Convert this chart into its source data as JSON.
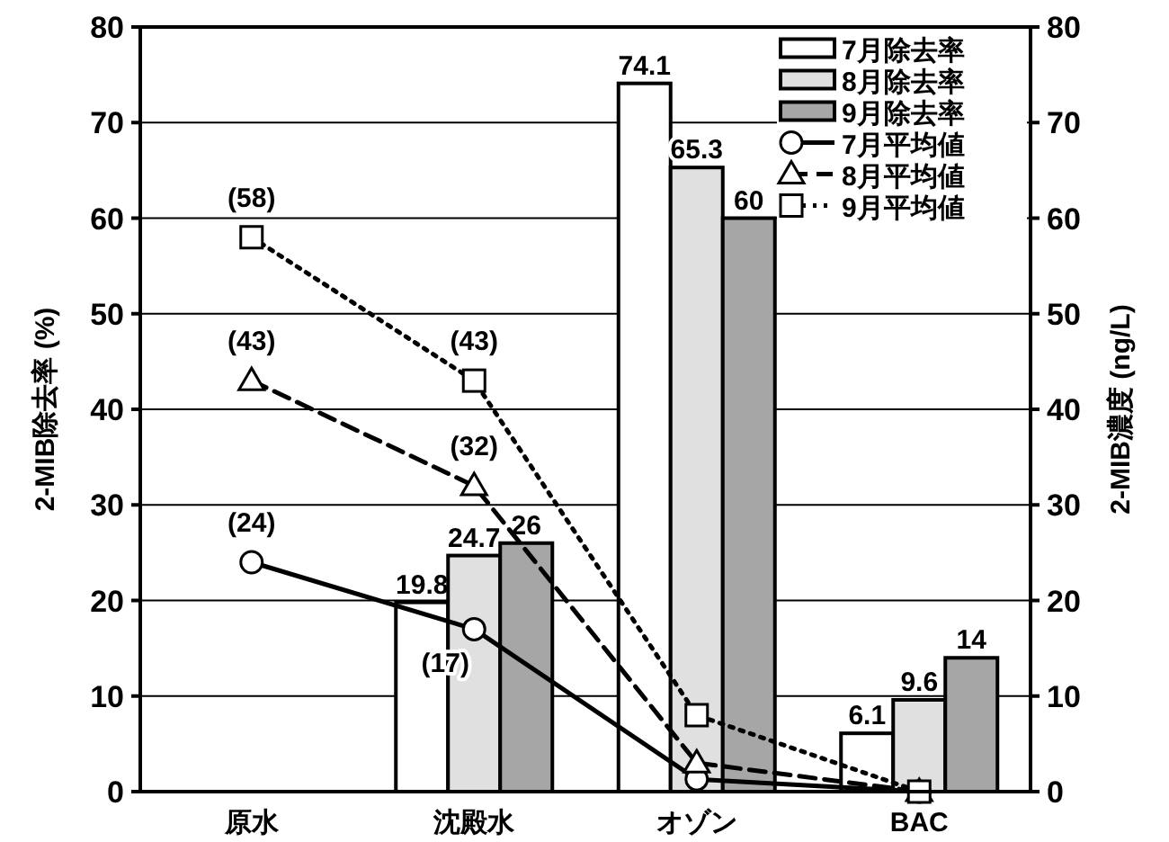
{
  "chart_data": {
    "type": "bar",
    "ylabel": "2-MIB除去率 (%)",
    "y2label": "2-MIB濃度 (ng/L)",
    "categories": [
      "原水",
      "沈殿水",
      "オゾン",
      "BAC"
    ],
    "ylim": [
      0,
      80
    ],
    "yticks": [
      0,
      10,
      20,
      30,
      40,
      50,
      60,
      70,
      80
    ],
    "y2lim": [
      0,
      80
    ],
    "y2ticks": [
      0,
      10,
      20,
      30,
      40,
      50,
      60,
      70,
      80
    ],
    "grid": "y",
    "legend": "top right",
    "data_labels": true,
    "series": [
      {
        "name": "7月除去率",
        "color": "#ffffff",
        "values": [
          null,
          19.8,
          74.1,
          6.1
        ]
      },
      {
        "name": "8月除去率",
        "color": "#e0e0e0",
        "values": [
          null,
          24.7,
          65.3,
          9.6
        ]
      },
      {
        "name": "9月除去率",
        "color": "#a6a6a6",
        "values": [
          null,
          26,
          60,
          14
        ]
      },
      {
        "name": "7月平均値",
        "type": "line",
        "axis": "y2",
        "color": "#000000",
        "marker": "circle",
        "line_style": "solid",
        "values": [
          24,
          17,
          1.3,
          0
        ],
        "value_labels": [
          "(24)",
          "(17)",
          null,
          null
        ]
      },
      {
        "name": "8月平均値",
        "type": "line",
        "axis": "y2",
        "color": "#000000",
        "marker": "triangle",
        "line_style": "dashed",
        "values": [
          43,
          32,
          3,
          0
        ],
        "value_labels": [
          "(43)",
          "(32)",
          null,
          null
        ]
      },
      {
        "name": "9月平均値",
        "type": "line",
        "axis": "y2",
        "color": "#000000",
        "marker": "square",
        "line_style": "dotted",
        "values": [
          58,
          43,
          8,
          0
        ],
        "value_labels": [
          "(58)",
          "(43)",
          null,
          null
        ]
      }
    ]
  }
}
